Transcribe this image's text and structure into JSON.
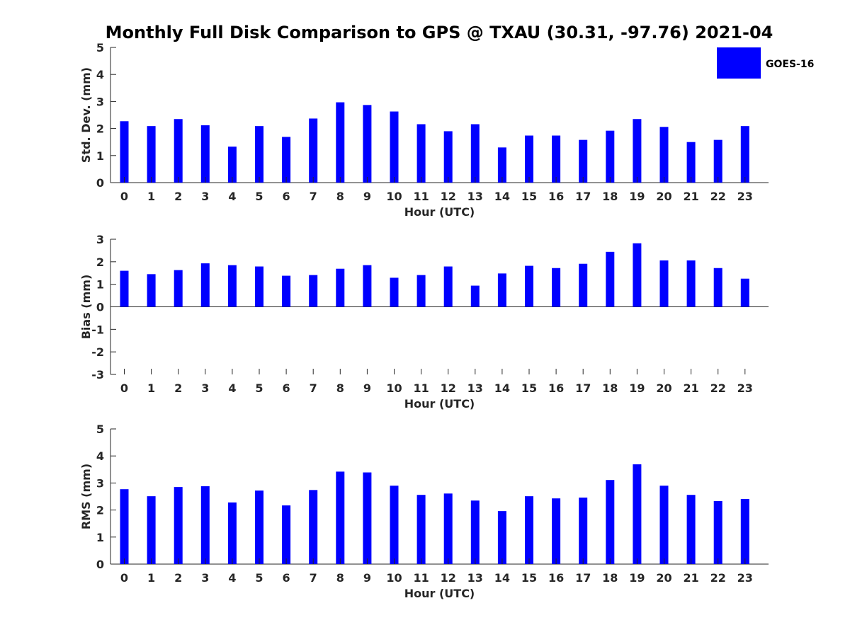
{
  "chart_data": {
    "type": "bar",
    "title": "Monthly Full Disk Comparison to GPS @ TXAU (30.31, -97.76) 2021-04",
    "legend": {
      "label": "GOES-16",
      "position": "top-right"
    },
    "series_color": "#0000ff",
    "categories": [
      "0",
      "1",
      "2",
      "3",
      "4",
      "5",
      "6",
      "7",
      "8",
      "9",
      "10",
      "11",
      "12",
      "13",
      "14",
      "15",
      "16",
      "17",
      "18",
      "19",
      "20",
      "21",
      "22",
      "23"
    ],
    "panels": [
      {
        "key": "stddev",
        "ylabel": "Std. Dev. (mm)",
        "xlabel": "Hour (UTC)",
        "ylim": [
          0,
          5
        ],
        "yticks": [
          0,
          1,
          2,
          3,
          4,
          5
        ],
        "values": [
          2.27,
          2.09,
          2.35,
          2.12,
          1.33,
          2.09,
          1.69,
          2.37,
          2.97,
          2.87,
          2.63,
          2.16,
          1.9,
          2.16,
          1.3,
          1.74,
          1.74,
          1.58,
          1.92,
          2.35,
          2.06,
          1.5,
          1.58,
          2.09
        ]
      },
      {
        "key": "bias",
        "ylabel": "Bias (mm)",
        "xlabel": "Hour (UTC)",
        "ylim": [
          -3,
          3
        ],
        "yticks": [
          -3,
          -2,
          -1,
          0,
          1,
          2,
          3
        ],
        "values": [
          1.6,
          1.45,
          1.63,
          1.93,
          1.85,
          1.79,
          1.38,
          1.41,
          1.69,
          1.85,
          1.29,
          1.41,
          1.79,
          0.94,
          1.48,
          1.82,
          1.72,
          1.91,
          2.44,
          2.82,
          2.06,
          2.06,
          1.72,
          1.25
        ]
      },
      {
        "key": "rms",
        "ylabel": "RMS (mm)",
        "xlabel": "Hour (UTC)",
        "ylim": [
          0,
          5
        ],
        "yticks": [
          0,
          1,
          2,
          3,
          4,
          5
        ],
        "values": [
          2.77,
          2.51,
          2.85,
          2.88,
          2.28,
          2.72,
          2.17,
          2.74,
          3.42,
          3.39,
          2.9,
          2.56,
          2.61,
          2.35,
          1.96,
          2.51,
          2.43,
          2.46,
          3.11,
          3.69,
          2.9,
          2.56,
          2.33,
          2.41
        ]
      }
    ]
  }
}
